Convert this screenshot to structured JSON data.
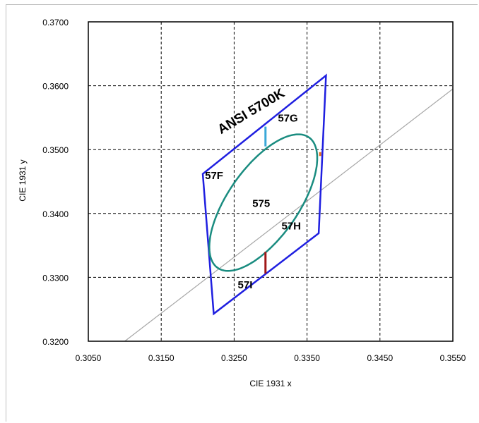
{
  "chart_data": {
    "type": "scatter",
    "xlabel": "CIE 1931 x",
    "ylabel": "CIE 1931 y",
    "xlim": [
      0.305,
      0.355
    ],
    "ylim": [
      0.32,
      0.37
    ],
    "xticks": [
      "0.3050",
      "0.3150",
      "0.3250",
      "0.3350",
      "0.3450",
      "0.3550"
    ],
    "yticks": [
      "0.3200",
      "0.3300",
      "0.3400",
      "0.3500",
      "0.3600",
      "0.3700"
    ],
    "grid": "dashed",
    "colors": {
      "quadrangle": "#1f1fe0",
      "ellipse": "#1a8c80",
      "blackbody": "#a6a6a6",
      "marker_top": "#3aa8d8",
      "marker_bottom": "#a01818",
      "marker_right": "#e06a1a"
    },
    "ansi_quadrangle": {
      "label": "ANSI 5700K",
      "points": [
        [
          0.3376,
          0.3616
        ],
        [
          0.3207,
          0.3462
        ],
        [
          0.3222,
          0.3243
        ],
        [
          0.3366,
          0.3369
        ]
      ]
    },
    "center_line": {
      "top": [
        0.3292,
        0.3538
      ],
      "bottom": [
        0.3294,
        0.3304
      ]
    },
    "ellipse": {
      "center": [
        0.329,
        0.3417
      ],
      "semi_major": 0.012,
      "semi_minor": 0.005,
      "rotation_deg": 60
    },
    "blackbody_locus": [
      [
        0.31,
        0.32
      ],
      [
        0.355,
        0.3595
      ]
    ],
    "region_labels": [
      {
        "text": "57G",
        "x": 0.331,
        "y": 0.3544
      },
      {
        "text": "57F",
        "x": 0.321,
        "y": 0.3454
      },
      {
        "text": "575",
        "x": 0.3275,
        "y": 0.341
      },
      {
        "text": "57H",
        "x": 0.3315,
        "y": 0.3375
      },
      {
        "text": "57I",
        "x": 0.3255,
        "y": 0.3283
      }
    ],
    "markers": [
      {
        "name": "marker_top",
        "x": 0.3293,
        "y1": 0.3505,
        "y2": 0.3536
      },
      {
        "name": "marker_bottom",
        "x": 0.3293,
        "y1": 0.3306,
        "y2": 0.334
      },
      {
        "name": "marker_right",
        "x": 0.3368,
        "y1": 0.349,
        "y2": 0.3496
      }
    ]
  }
}
